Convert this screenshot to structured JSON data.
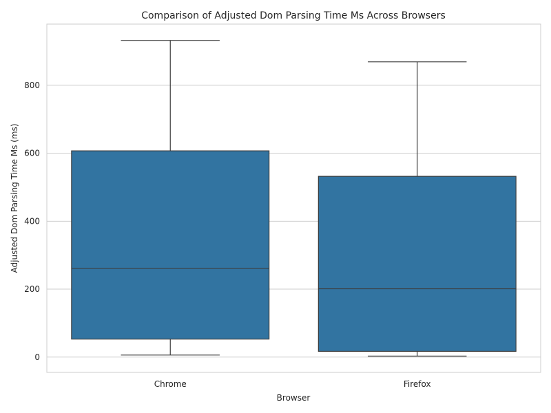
{
  "chart_data": {
    "type": "box",
    "title": "Comparison of Adjusted Dom Parsing Time Ms Across Browsers",
    "xlabel": "Browser",
    "ylabel": "Adjusted Dom Parsing Time Ms (ms)",
    "categories": [
      "Chrome",
      "Firefox"
    ],
    "boxes": [
      {
        "category": "Chrome",
        "whisker_low": 6,
        "q1": 53,
        "median": 261,
        "q3": 607,
        "whisker_high": 932
      },
      {
        "category": "Firefox",
        "whisker_low": 3,
        "q1": 17,
        "median": 201,
        "q3": 532,
        "whisker_high": 869
      }
    ],
    "ylim": [
      -45,
      980
    ],
    "yticks": [
      0,
      200,
      400,
      600,
      800
    ],
    "grid": true,
    "box_color": "#3274a1",
    "line_color": "#3d3d3d",
    "grid_color": "#cccccc"
  }
}
